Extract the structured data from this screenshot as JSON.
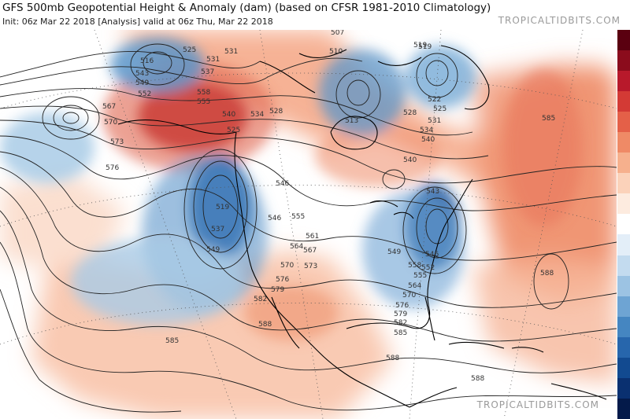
{
  "header": {
    "title": "GFS 500mb Geopotential Height & Anomaly (dam) (based on CFSR 1981-2010 Climatology)",
    "subtitle": "Init: 06z Mar 22 2018   [Analysis]   valid at 06z Thu, Mar 22 2018",
    "brand": "TROPICALTIDBITS.COM"
  },
  "map": {
    "contour_labels": [
      "516",
      "525",
      "531",
      "531",
      "537",
      "543",
      "549",
      "552",
      "558",
      "555",
      "567",
      "570",
      "573",
      "576",
      "540",
      "534",
      "528",
      "525",
      "519",
      "537",
      "546",
      "549",
      "555",
      "561",
      "564",
      "567",
      "570",
      "573",
      "576",
      "579",
      "582",
      "585",
      "588",
      "585",
      "588",
      "507",
      "510",
      "513",
      "519",
      "522",
      "525",
      "531",
      "534",
      "540",
      "543",
      "546",
      "549",
      "552",
      "555",
      "558",
      "564",
      "570",
      "576",
      "579",
      "582",
      "585",
      "588",
      "588",
      "528",
      "519",
      "540",
      "546"
    ],
    "colors": {
      "strong_positive": "#b01020",
      "positive": "#e8725a",
      "light_positive": "#f6b79a",
      "faint_positive": "#fbdccb",
      "strong_negative": "#1d57a0",
      "negative": "#5b95c9",
      "light_negative": "#a9cbe6",
      "contour": "#222222",
      "coast": "#000000"
    }
  },
  "colorbar": {
    "colors": [
      "#5a0010",
      "#8b0c1c",
      "#b8192b",
      "#d33a35",
      "#e46048",
      "#ef8a66",
      "#f6b08d",
      "#fbd2ba",
      "#fdebdf",
      "#ffffff",
      "#e3eef8",
      "#c3dbef",
      "#9cc3e3",
      "#6ea4d3",
      "#4586c1",
      "#2766ac",
      "#124a90",
      "#0a3070",
      "#041a4a"
    ]
  }
}
